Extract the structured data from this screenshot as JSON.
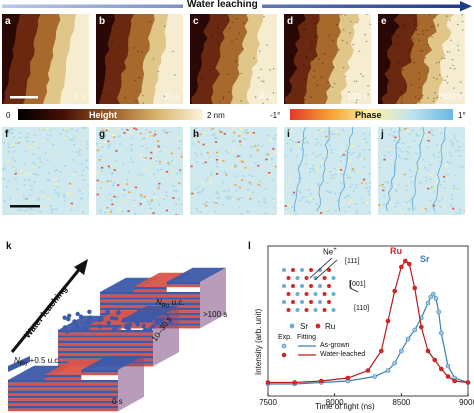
{
  "header": {
    "label": "Water leaching",
    "arrow_color": "#1f3c88"
  },
  "height_panels": [
    {
      "letter": "a",
      "time": "0 s"
    },
    {
      "letter": "b",
      "time": "10 s"
    },
    {
      "letter": "c",
      "time": "30 s"
    },
    {
      "letter": "d",
      "time": "100 s"
    },
    {
      "letter": "e",
      "time": "1000 s"
    }
  ],
  "phase_panels": [
    {
      "letter": "f"
    },
    {
      "letter": "g"
    },
    {
      "letter": "h"
    },
    {
      "letter": "i"
    },
    {
      "letter": "j"
    }
  ],
  "height_colorbar": {
    "min": "0",
    "label": "Height",
    "max": "2 nm",
    "colors": [
      "#000000",
      "#4a1008",
      "#9b5a24",
      "#d8b46a",
      "#fbf4df"
    ]
  },
  "phase_colorbar": {
    "min": "-1°",
    "label": "Phase",
    "max": "1°",
    "colors": [
      "#e23a2a",
      "#f5a233",
      "#fff2a8",
      "#bfe3ee",
      "#67b7e3"
    ]
  },
  "panel_k": {
    "letter": "k",
    "arrow_label": "Water leaching",
    "stacks": [
      {
        "label_main": "N",
        "label_sub": "Ru",
        "label_rest": " u.c.",
        "time": ">100 s"
      },
      {
        "label_main": "",
        "label_sub": "",
        "label_rest": "",
        "time": "10–30 s"
      },
      {
        "label_main": "N",
        "label_sub": "Ru",
        "label_rest": " +0.5 u.c.",
        "time": "0 s"
      }
    ],
    "colors": {
      "sr_layer": "#3c5aa8",
      "ru_layer": "#d9544a"
    }
  },
  "panel_l": {
    "letter": "l",
    "inset": {
      "ion": "Ne",
      "ion_charge": "+",
      "dir_111": "[111]",
      "dir_001": "[001]",
      "dir_110": "[110]",
      "legend": [
        {
          "name": "Sr",
          "color": "#6aaed6"
        },
        {
          "name": "Ru",
          "color": "#d62828"
        }
      ]
    },
    "peak_labels": [
      {
        "text": "Ru",
        "color": "#d62828"
      },
      {
        "text": "Sr",
        "color": "#3a7fb8"
      }
    ],
    "legend": {
      "exp": "Exp.",
      "fit": "Fitting",
      "series": [
        {
          "name": "As-grown",
          "color": "#3a7fb8"
        },
        {
          "name": "Water-leached",
          "color": "#b51c1c"
        }
      ]
    }
  },
  "chart_data": {
    "type": "line",
    "xlabel": "Time of fight (ns)",
    "ylabel": "Intensity (arb. unit)",
    "xlim": [
      7500,
      9000
    ],
    "xticks": [
      "7500",
      "8000",
      "8500",
      "9000"
    ],
    "series": [
      {
        "name": "As-grown",
        "color": "#3a7fb8",
        "x": [
          7500,
          7700,
          7900,
          8100,
          8300,
          8400,
          8450,
          8500,
          8550,
          8600,
          8650,
          8700,
          8720,
          8740,
          8760,
          8780,
          8800,
          8850,
          8900,
          9000
        ],
        "y": [
          0.08,
          0.08,
          0.09,
          0.1,
          0.13,
          0.17,
          0.22,
          0.3,
          0.38,
          0.44,
          0.52,
          0.62,
          0.66,
          0.68,
          0.65,
          0.56,
          0.42,
          0.2,
          0.12,
          0.09
        ]
      },
      {
        "name": "Water-leached",
        "color": "#b51c1c",
        "x": [
          7500,
          7700,
          7900,
          8100,
          8250,
          8350,
          8400,
          8450,
          8500,
          8530,
          8560,
          8600,
          8650,
          8700,
          8750,
          8800,
          8850,
          8900,
          9000
        ],
        "y": [
          0.09,
          0.09,
          0.1,
          0.12,
          0.17,
          0.3,
          0.5,
          0.7,
          0.86,
          0.9,
          0.88,
          0.72,
          0.46,
          0.3,
          0.24,
          0.18,
          0.13,
          0.1,
          0.09
        ]
      }
    ]
  }
}
